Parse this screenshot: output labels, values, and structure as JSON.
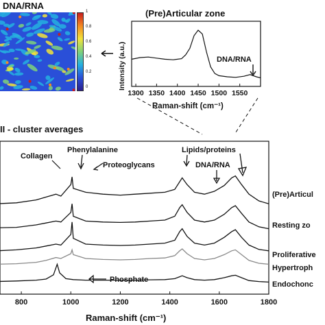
{
  "heatmap": {
    "title": "DNA/RNA",
    "colorbar_ticks": [
      "1",
      "0.8",
      "0.6",
      "0.4",
      "0.2",
      "0"
    ],
    "colors": [
      "#2b1f8f",
      "#2a4fd8",
      "#24b0e0",
      "#7fd17a",
      "#f2e33a",
      "#f58a22",
      "#c81e1e"
    ]
  },
  "chart_data": [
    {
      "type": "line",
      "title": "(Pre)Articular zone",
      "xlabel": "Raman-shift (cm⁻¹)",
      "ylabel": "Intensity (a.u.)",
      "xlim": [
        1290,
        1600
      ],
      "xticks": [
        "1300",
        "1350",
        "1400",
        "1450",
        "1500",
        "1550"
      ],
      "x": [
        1290,
        1310,
        1330,
        1350,
        1370,
        1390,
        1410,
        1420,
        1430,
        1440,
        1450,
        1460,
        1470,
        1480,
        1490,
        1500,
        1520,
        1540,
        1560,
        1575,
        1590,
        1600
      ],
      "y": [
        0.42,
        0.45,
        0.46,
        0.44,
        0.42,
        0.41,
        0.43,
        0.5,
        0.62,
        0.85,
        0.95,
        0.88,
        0.55,
        0.28,
        0.16,
        0.12,
        0.1,
        0.09,
        0.11,
        0.14,
        0.1,
        0.08
      ],
      "annotations": [
        {
          "text": "DNA/RNA",
          "x": 1575
        }
      ]
    },
    {
      "type": "line",
      "title": "II - cluster averages",
      "xlabel": "Raman-shift (cm⁻¹)",
      "xlim": [
        700,
        1800
      ],
      "xticks": [
        "800",
        "1000",
        "1200",
        "1400",
        "1600",
        "1800"
      ],
      "series": [
        {
          "name": "(Pre)Articular zone",
          "color": "#111111",
          "offset": 4.0,
          "x": [
            700,
            780,
            860,
            900,
            940,
            960,
            1000,
            1005,
            1010,
            1060,
            1130,
            1200,
            1260,
            1320,
            1380,
            1420,
            1440,
            1450,
            1470,
            1500,
            1540,
            1580,
            1620,
            1650,
            1665,
            1690,
            1720,
            1760,
            1800
          ],
          "y": [
            0.1,
            0.15,
            0.3,
            0.45,
            0.6,
            0.5,
            1.1,
            1.5,
            0.9,
            0.7,
            0.6,
            0.55,
            0.6,
            0.65,
            0.7,
            0.85,
            1.25,
            1.45,
            1.1,
            0.7,
            0.6,
            0.75,
            1.05,
            1.45,
            1.55,
            1.1,
            0.6,
            0.25,
            0.1
          ]
        },
        {
          "name": "Resting zone",
          "color": "#111111",
          "offset": 2.75,
          "x": [
            700,
            780,
            860,
            900,
            940,
            960,
            1000,
            1005,
            1010,
            1060,
            1130,
            1200,
            1260,
            1320,
            1380,
            1420,
            1440,
            1450,
            1470,
            1500,
            1540,
            1580,
            1620,
            1650,
            1665,
            1690,
            1720,
            1760,
            1800
          ],
          "y": [
            0.1,
            0.12,
            0.25,
            0.35,
            0.45,
            0.4,
            0.9,
            1.35,
            0.7,
            0.45,
            0.4,
            0.38,
            0.4,
            0.45,
            0.5,
            0.7,
            1.15,
            1.3,
            0.9,
            0.5,
            0.4,
            0.5,
            0.8,
            1.15,
            1.25,
            0.85,
            0.4,
            0.15,
            0.05
          ]
        },
        {
          "name": "Proliferative zone",
          "color": "#111111",
          "offset": 1.6,
          "x": [
            700,
            780,
            860,
            900,
            940,
            960,
            1000,
            1005,
            1010,
            1060,
            1130,
            1200,
            1260,
            1320,
            1380,
            1420,
            1440,
            1450,
            1470,
            1500,
            1540,
            1580,
            1620,
            1650,
            1665,
            1690,
            1720,
            1760,
            1800
          ],
          "y": [
            0.05,
            0.1,
            0.2,
            0.3,
            0.4,
            0.35,
            0.9,
            1.55,
            0.7,
            0.4,
            0.35,
            0.33,
            0.35,
            0.4,
            0.45,
            0.6,
            1.05,
            1.2,
            0.8,
            0.45,
            0.35,
            0.45,
            0.75,
            1.05,
            1.15,
            0.75,
            0.35,
            0.12,
            0.05
          ]
        },
        {
          "name": "Hypertrophic zone",
          "color": "#888888",
          "offset": 0.9,
          "x": [
            700,
            780,
            860,
            900,
            940,
            960,
            1000,
            1005,
            1010,
            1060,
            1130,
            1200,
            1260,
            1320,
            1380,
            1420,
            1440,
            1450,
            1470,
            1500,
            1540,
            1580,
            1620,
            1650,
            1665,
            1690,
            1720,
            1760,
            1800
          ],
          "y": [
            0.05,
            0.08,
            0.15,
            0.25,
            0.4,
            0.35,
            0.6,
            0.8,
            0.55,
            0.35,
            0.3,
            0.28,
            0.3,
            0.35,
            0.38,
            0.5,
            0.75,
            0.85,
            0.6,
            0.35,
            0.28,
            0.35,
            0.55,
            0.75,
            0.8,
            0.55,
            0.25,
            0.1,
            0.05
          ]
        },
        {
          "name": "Endochondral bone",
          "color": "#111111",
          "offset": 0.0,
          "x": [
            700,
            780,
            860,
            900,
            930,
            945,
            955,
            980,
            1010,
            1060,
            1130,
            1200,
            1260,
            1320,
            1380,
            1420,
            1440,
            1450,
            1470,
            1500,
            1540,
            1580,
            1620,
            1650,
            1665,
            1690,
            1720,
            1760,
            1800
          ],
          "y": [
            0.05,
            0.08,
            0.12,
            0.18,
            0.4,
            0.95,
            0.5,
            0.2,
            0.15,
            0.12,
            0.12,
            0.12,
            0.12,
            0.14,
            0.15,
            0.2,
            0.3,
            0.35,
            0.25,
            0.15,
            0.12,
            0.15,
            0.25,
            0.35,
            0.38,
            0.25,
            0.1,
            0.05,
            0.02
          ]
        }
      ],
      "series_labels": [
        "(Pre)Articul",
        "Resting zo",
        "Proliferative",
        "Hypertroph",
        "Endochonc"
      ],
      "annotations": [
        {
          "text": "Collagen",
          "x": 938
        },
        {
          "text": "Phenylalanine",
          "x": 1003
        },
        {
          "text": "Proteoglycans",
          "x": 1062
        },
        {
          "text": "Lipids/proteins",
          "x": 1450
        },
        {
          "text": "DNA/RNA",
          "x": 1575
        },
        {
          "text": "Phosphate",
          "x": 960
        }
      ]
    }
  ]
}
